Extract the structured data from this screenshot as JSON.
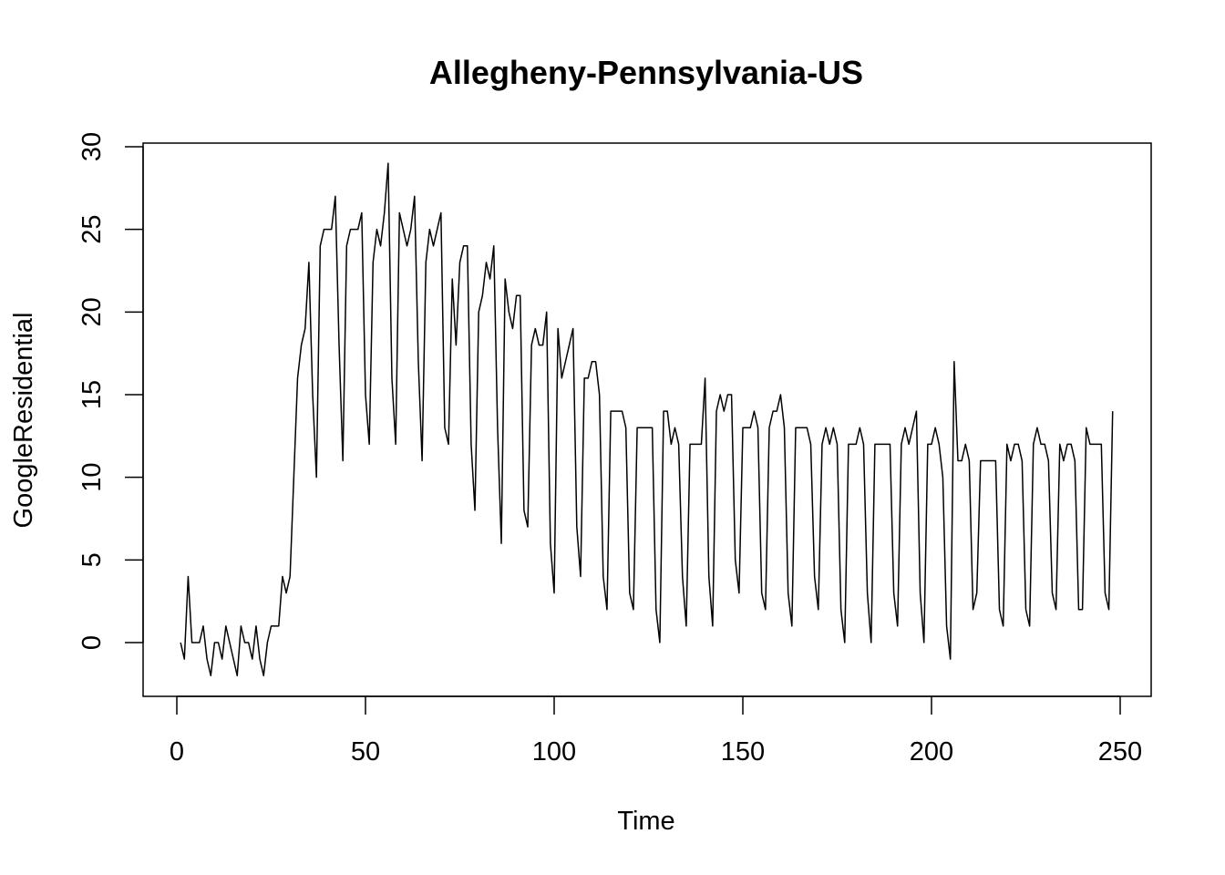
{
  "chart_data": {
    "type": "line",
    "title": "Allegheny-Pennsylvania-US",
    "xlabel": "Time",
    "ylabel": "GoogleResidential",
    "xlim": [
      0,
      250
    ],
    "ylim": [
      -3,
      30
    ],
    "x_ticks": [
      0,
      50,
      100,
      150,
      200,
      250
    ],
    "y_ticks": [
      0,
      5,
      10,
      15,
      20,
      25,
      30
    ],
    "x_tick_labels": [
      "0",
      "50",
      "100",
      "150",
      "200",
      "250"
    ],
    "y_tick_labels": [
      "0",
      "5",
      "10",
      "15",
      "20",
      "25",
      "30"
    ],
    "grid": false,
    "x_start": 1,
    "series": [
      {
        "color": "#000000",
        "values": [
          0,
          -1,
          4,
          0,
          0,
          0,
          1,
          -1,
          -2,
          0,
          0,
          -1,
          1,
          0,
          -1,
          -2,
          1,
          0,
          0,
          -1,
          1,
          -1,
          -2,
          0,
          1,
          1,
          1,
          4,
          3,
          4,
          10,
          16,
          18,
          19,
          23,
          15,
          10,
          24,
          25,
          25,
          25,
          27,
          18,
          11,
          24,
          25,
          25,
          25,
          26,
          15,
          12,
          23,
          25,
          24,
          26,
          29,
          16,
          12,
          26,
          25,
          24,
          25,
          27,
          17,
          11,
          23,
          25,
          24,
          25,
          26,
          13,
          12,
          22,
          18,
          23,
          24,
          24,
          12,
          8,
          20,
          21,
          23,
          22,
          24,
          13,
          6,
          22,
          20,
          19,
          21,
          21,
          8,
          7,
          18,
          19,
          18,
          18,
          20,
          6,
          3,
          19,
          16,
          17,
          18,
          19,
          7,
          4,
          16,
          16,
          17,
          17,
          15,
          4,
          2,
          14,
          14,
          14,
          14,
          13,
          3,
          2,
          13,
          13,
          13,
          13,
          13,
          2,
          0,
          14,
          14,
          12,
          13,
          12,
          4,
          1,
          12,
          12,
          12,
          12,
          16,
          4,
          1,
          14,
          15,
          14,
          15,
          15,
          5,
          3,
          13,
          13,
          13,
          14,
          13,
          3,
          2,
          13,
          14,
          14,
          15,
          13,
          3,
          1,
          13,
          13,
          13,
          13,
          12,
          4,
          2,
          12,
          13,
          12,
          13,
          12,
          2,
          0,
          12,
          12,
          12,
          13,
          12,
          3,
          0,
          12,
          12,
          12,
          12,
          12,
          3,
          1,
          12,
          13,
          12,
          13,
          14,
          3,
          0,
          12,
          12,
          13,
          12,
          10,
          1,
          -1,
          17,
          11,
          11,
          12,
          11,
          2,
          3,
          11,
          11,
          11,
          11,
          11,
          2,
          1,
          12,
          11,
          12,
          12,
          11,
          2,
          1,
          12,
          13,
          12,
          12,
          11,
          3,
          2,
          12,
          11,
          12,
          12,
          11,
          2,
          2,
          13,
          12,
          12,
          12,
          12,
          3,
          2,
          14
        ]
      }
    ]
  }
}
